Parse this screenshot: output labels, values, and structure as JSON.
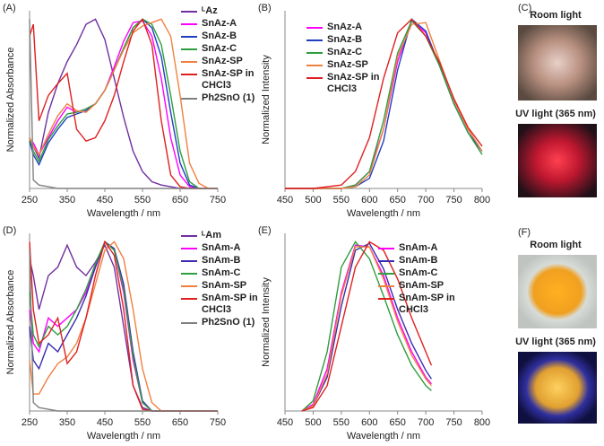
{
  "chart_data": [
    {
      "type": "line",
      "label": "(A)",
      "xlabel": "Wavelength / nm",
      "ylabel": "Normalized Absorbance",
      "x": [
        250,
        260,
        275,
        300,
        325,
        350,
        375,
        400,
        425,
        450,
        475,
        500,
        525,
        550,
        575,
        600,
        625,
        650,
        675,
        700,
        725,
        750
      ],
      "xlim": [
        250,
        750
      ],
      "xticks": [
        250,
        350,
        450,
        550,
        650,
        750
      ],
      "ylim": [
        0,
        1.05
      ],
      "series": [
        {
          "name": "ᴸAz",
          "color": "#7030a0",
          "values": [
            0.3,
            0.25,
            0.18,
            0.45,
            0.62,
            0.75,
            0.85,
            0.97,
            1.0,
            0.88,
            0.65,
            0.42,
            0.22,
            0.1,
            0.04,
            0.02,
            0.01,
            0,
            0,
            0,
            0,
            0
          ]
        },
        {
          "name": "SnAz-A",
          "color": "#ff00ff",
          "values": [
            0.28,
            0.27,
            0.2,
            0.3,
            0.4,
            0.48,
            0.45,
            0.47,
            0.5,
            0.58,
            0.72,
            0.87,
            0.98,
            0.99,
            0.9,
            0.65,
            0.3,
            0.08,
            0.01,
            0,
            0,
            0
          ]
        },
        {
          "name": "SnAz-B",
          "color": "#1f3fbf",
          "values": [
            0.28,
            0.2,
            0.14,
            0.27,
            0.35,
            0.42,
            0.44,
            0.46,
            0.5,
            0.58,
            0.7,
            0.83,
            0.95,
            1.0,
            0.95,
            0.78,
            0.45,
            0.15,
            0.02,
            0,
            0,
            0
          ]
        },
        {
          "name": "SnAz-C",
          "color": "#2e9e3e",
          "values": [
            0.3,
            0.22,
            0.16,
            0.29,
            0.37,
            0.44,
            0.45,
            0.47,
            0.5,
            0.58,
            0.7,
            0.83,
            0.95,
            1.0,
            0.97,
            0.85,
            0.55,
            0.22,
            0.04,
            0,
            0,
            0
          ]
        },
        {
          "name": "SnAz-SP",
          "color": "#f08040",
          "values": [
            0.3,
            0.25,
            0.2,
            0.32,
            0.43,
            0.5,
            0.46,
            0.45,
            0.5,
            0.58,
            0.7,
            0.82,
            0.92,
            0.96,
            0.98,
            1.0,
            0.9,
            0.55,
            0.15,
            0.03,
            0,
            0
          ]
        },
        {
          "name": "SnAz-SP in CHCl3",
          "color": "#e02020",
          "values": [
            0.9,
            0.97,
            0.4,
            0.55,
            0.62,
            0.68,
            0.35,
            0.28,
            0.3,
            0.4,
            0.55,
            0.75,
            0.93,
            1.0,
            0.85,
            0.4,
            0.08,
            0.01,
            0,
            0,
            0,
            0
          ]
        },
        {
          "name": "Ph2SnO (1)",
          "color": "#808080",
          "values": [
            1.0,
            0.05,
            0.02,
            0.01,
            0,
            0,
            0,
            0,
            0,
            0,
            0,
            0,
            0,
            0,
            0,
            0,
            0,
            0,
            0,
            0,
            0,
            0
          ]
        }
      ]
    },
    {
      "type": "line",
      "label": "(B)",
      "xlabel": "Wavelength / nm",
      "ylabel": "Normalized Intensity",
      "x": [
        450,
        500,
        550,
        575,
        600,
        625,
        650,
        675,
        700,
        725,
        750,
        775,
        800
      ],
      "xlim": [
        450,
        800
      ],
      "xticks": [
        450,
        500,
        550,
        600,
        650,
        700,
        750,
        800
      ],
      "ylim": [
        0,
        1.05
      ],
      "series": [
        {
          "name": "SnAz-A",
          "color": "#ff00ff",
          "values": [
            0,
            0,
            0,
            0.02,
            0.1,
            0.35,
            0.75,
            0.99,
            0.92,
            0.72,
            0.5,
            0.33,
            0.22
          ]
        },
        {
          "name": "SnAz-B",
          "color": "#1f3fbf",
          "values": [
            0,
            0,
            0,
            0.01,
            0.06,
            0.28,
            0.7,
            1.0,
            0.93,
            0.72,
            0.5,
            0.33,
            0.22
          ]
        },
        {
          "name": "SnAz-C",
          "color": "#2e9e3e",
          "values": [
            0,
            0,
            0,
            0.02,
            0.1,
            0.4,
            0.8,
            0.99,
            0.9,
            0.72,
            0.5,
            0.33,
            0.2
          ]
        },
        {
          "name": "SnAz-SP",
          "color": "#f08040",
          "values": [
            0,
            0,
            0,
            0.01,
            0.08,
            0.35,
            0.78,
            0.97,
            0.98,
            0.75,
            0.52,
            0.35,
            0.22
          ]
        },
        {
          "name": "SnAz-SP in CHCl3",
          "color": "#e02020",
          "values": [
            0,
            0,
            0.02,
            0.1,
            0.3,
            0.65,
            0.92,
            1.0,
            0.9,
            0.74,
            0.53,
            0.36,
            0.25
          ]
        }
      ]
    },
    {
      "type": "line",
      "label": "(D)",
      "xlabel": "Wavelength / nm",
      "ylabel": "Normalized Absorbance",
      "x": [
        250,
        260,
        275,
        300,
        325,
        350,
        375,
        400,
        425,
        450,
        475,
        500,
        525,
        550,
        575,
        600,
        625,
        650,
        675,
        700,
        725,
        750
      ],
      "xlim": [
        250,
        750
      ],
      "xticks": [
        250,
        350,
        450,
        550,
        650,
        750
      ],
      "ylim": [
        0,
        1.05
      ],
      "series": [
        {
          "name": "ᴸAm",
          "color": "#7030a0",
          "values": [
            0.9,
            0.8,
            0.6,
            0.8,
            0.85,
            0.98,
            0.85,
            0.8,
            0.88,
            0.98,
            0.85,
            0.5,
            0.15,
            0.02,
            0,
            0,
            0,
            0,
            0,
            0,
            0,
            0
          ]
        },
        {
          "name": "SnAm-A",
          "color": "#ff00ff",
          "values": [
            0.6,
            0.4,
            0.35,
            0.55,
            0.5,
            0.55,
            0.6,
            0.7,
            0.85,
            1.0,
            0.95,
            0.7,
            0.3,
            0.05,
            0,
            0,
            0,
            0,
            0,
            0,
            0,
            0
          ]
        },
        {
          "name": "SnAm-B",
          "color": "#3a2cb0",
          "values": [
            0.5,
            0.3,
            0.25,
            0.4,
            0.35,
            0.45,
            0.55,
            0.68,
            0.85,
            1.0,
            0.96,
            0.75,
            0.35,
            0.06,
            0,
            0,
            0,
            0,
            0,
            0,
            0,
            0
          ]
        },
        {
          "name": "SnAm-C",
          "color": "#2e9e3e",
          "values": [
            0.7,
            0.45,
            0.38,
            0.5,
            0.45,
            0.5,
            0.6,
            0.72,
            0.87,
            1.0,
            0.95,
            0.72,
            0.32,
            0.05,
            0,
            0,
            0,
            0,
            0,
            0,
            0,
            0
          ]
        },
        {
          "name": "SnAm-SP",
          "color": "#f08040",
          "values": [
            0.3,
            0.1,
            0.1,
            0.2,
            0.28,
            0.32,
            0.4,
            0.55,
            0.75,
            0.95,
            1.0,
            0.9,
            0.6,
            0.25,
            0.05,
            0,
            0,
            0,
            0,
            0,
            0,
            0
          ]
        },
        {
          "name": "SnAm-SP in CHCl3",
          "color": "#e02020",
          "values": [
            1.0,
            0.6,
            0.4,
            0.45,
            0.55,
            0.28,
            0.35,
            0.55,
            0.8,
            1.0,
            0.92,
            0.6,
            0.15,
            0.01,
            0,
            0,
            0,
            0,
            0,
            0,
            0,
            0
          ]
        },
        {
          "name": "Ph2SnO (1)",
          "color": "#808080",
          "values": [
            0.95,
            0.05,
            0.02,
            0.01,
            0,
            0,
            0,
            0,
            0,
            0,
            0,
            0,
            0,
            0,
            0,
            0,
            0,
            0,
            0,
            0,
            0,
            0
          ]
        }
      ]
    },
    {
      "type": "line",
      "label": "(E)",
      "xlabel": "Wavelength / nm",
      "ylabel": "Normalized Intensity",
      "x": [
        480,
        500,
        525,
        550,
        575,
        600,
        625,
        650,
        675,
        700,
        710
      ],
      "xlim": [
        450,
        800
      ],
      "xticks": [
        450,
        500,
        550,
        600,
        650,
        700,
        750,
        800
      ],
      "ylim": [
        0,
        1.05
      ],
      "series": [
        {
          "name": "SnAm-A",
          "color": "#ff00ff",
          "values": [
            0,
            0.04,
            0.25,
            0.7,
            0.98,
            0.97,
            0.8,
            0.55,
            0.35,
            0.2,
            0.16
          ]
        },
        {
          "name": "SnAm-B",
          "color": "#3a2cb0",
          "values": [
            0,
            0.03,
            0.2,
            0.62,
            0.95,
            0.99,
            0.84,
            0.6,
            0.4,
            0.24,
            0.19
          ]
        },
        {
          "name": "SnAm-C",
          "color": "#2e9e3e",
          "values": [
            0,
            0.06,
            0.35,
            0.85,
            1.0,
            0.9,
            0.68,
            0.45,
            0.27,
            0.15,
            0.12
          ]
        },
        {
          "name": "SnAm-SP",
          "color": "#f08040",
          "values": [
            0,
            0.03,
            0.22,
            0.68,
            0.97,
            0.97,
            0.78,
            0.53,
            0.33,
            0.19,
            0.15
          ]
        },
        {
          "name": "SnAm-SP in CHCl3",
          "color": "#e02020",
          "values": [
            0,
            0.02,
            0.15,
            0.5,
            0.85,
            1.0,
            0.95,
            0.78,
            0.55,
            0.35,
            0.27
          ]
        }
      ]
    }
  ],
  "photos": [
    {
      "label": "(C)",
      "captions": [
        "Room light",
        "UV light (365 nm)"
      ]
    },
    {
      "label": "(F)",
      "captions": [
        "Room light",
        "UV light (365 nm)"
      ]
    }
  ]
}
